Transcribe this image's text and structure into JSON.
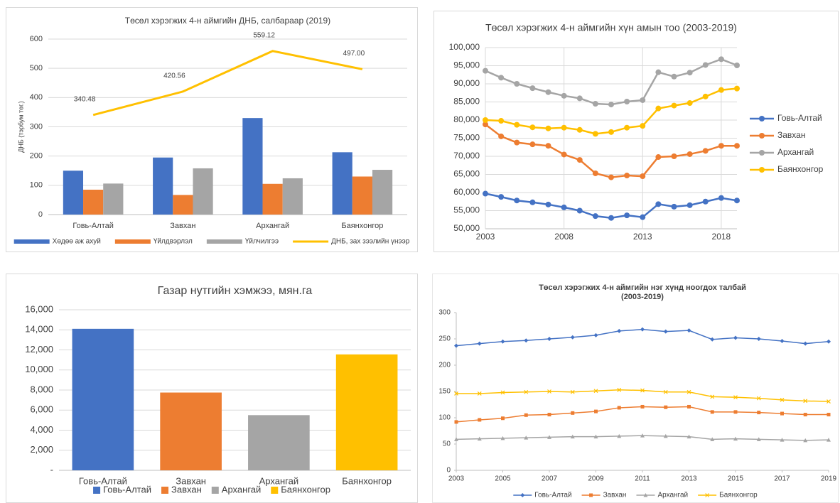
{
  "chart_data": [
    {
      "type": "bar",
      "title": "Төсөл хэрэгжих 4-н аймгийн ДНБ, салбараар (2019)",
      "ylabel": "ДНБ (тэрбум төг.)",
      "categories": [
        "Говь-Алтай",
        "Завхан",
        "Архангай",
        "Баянхонгор"
      ],
      "series": [
        {
          "name": "Хөдөө аж ахуй",
          "color": "#4472c4",
          "values": [
            150,
            195,
            330,
            213
          ]
        },
        {
          "name": "Үйлдвэрлэл",
          "color": "#ed7d31",
          "values": [
            85,
            67,
            105,
            130
          ]
        },
        {
          "name": "Үйлчилгээ",
          "color": "#a5a5a5",
          "values": [
            106,
            158,
            124,
            153
          ]
        },
        {
          "name": "ДНБ, зах зээлийн үнээр",
          "color": "#ffc000",
          "type": "line",
          "values": [
            340.48,
            420.56,
            559.12,
            497
          ],
          "value_labels": [
            "340.48",
            "420.56",
            "559.12",
            "497.00"
          ]
        }
      ],
      "ylim": [
        0,
        600
      ],
      "yticks": [
        0,
        100,
        200,
        300,
        400,
        500,
        600
      ],
      "grid": true,
      "legend": "bottom"
    },
    {
      "type": "line",
      "title": "Төсөл хэрэгжих 4-н аймгийн хүн амын тоо (2003-2019)",
      "x": [
        2003,
        2004,
        2005,
        2006,
        2007,
        2008,
        2009,
        2010,
        2011,
        2012,
        2013,
        2014,
        2015,
        2016,
        2017,
        2018,
        2019
      ],
      "series": [
        {
          "name": "Говь-Алтай",
          "color": "#4472c4",
          "marker": "circle",
          "values": [
            59700,
            58800,
            57800,
            57300,
            56700,
            55900,
            55000,
            53500,
            53000,
            53700,
            53200,
            56800,
            56100,
            56500,
            57500,
            58500,
            57800
          ]
        },
        {
          "name": "Завхан",
          "color": "#ed7d31",
          "marker": "circle",
          "values": [
            78800,
            75500,
            73800,
            73300,
            72900,
            70500,
            69000,
            65300,
            64200,
            64700,
            64500,
            69800,
            70000,
            70600,
            71500,
            72900,
            72900
          ]
        },
        {
          "name": "Архангай",
          "color": "#a5a5a5",
          "marker": "circle",
          "values": [
            93600,
            91700,
            90000,
            88800,
            87700,
            86700,
            86000,
            84500,
            84300,
            85100,
            85500,
            93200,
            92000,
            93100,
            95200,
            96800,
            95100
          ]
        },
        {
          "name": "Баянхонгор",
          "color": "#ffc000",
          "marker": "circle",
          "values": [
            80000,
            79800,
            78700,
            78000,
            77700,
            77900,
            77300,
            76200,
            76700,
            77900,
            78400,
            83200,
            84000,
            84700,
            86500,
            88300,
            88700
          ]
        }
      ],
      "xlim": [
        2003,
        2019
      ],
      "xticks": [
        2003,
        2008,
        2013,
        2018
      ],
      "ylim": [
        50000,
        100000
      ],
      "yticks": [
        {
          "value": 50000,
          "label": "50,000"
        },
        {
          "value": 55000,
          "label": "55,000"
        },
        {
          "value": 60000,
          "label": "60,000"
        },
        {
          "value": 65000,
          "label": "65,000"
        },
        {
          "value": 70000,
          "label": "70,000"
        },
        {
          "value": 75000,
          "label": "75,000"
        },
        {
          "value": 80000,
          "label": "80,000"
        },
        {
          "value": 85000,
          "label": "85,000"
        },
        {
          "value": 90000,
          "label": "90,000"
        },
        {
          "value": 95000,
          "label": "95,000"
        },
        {
          "value": 100000,
          "label": "100,000"
        }
      ],
      "grid": true,
      "xgrid": true,
      "legend": "right"
    },
    {
      "type": "bar",
      "title": "Газар нутгийн хэмжээ, мян.га",
      "categories": [
        "Говь-Алтай",
        "Завхан",
        "Архангай",
        "Баянхонгор"
      ],
      "values": [
        14100,
        7750,
        5500,
        11550
      ],
      "colors": [
        "#4472c4",
        "#ed7d31",
        "#a5a5a5",
        "#ffc000"
      ],
      "ylim": [
        0,
        16000
      ],
      "yticks": [
        {
          "value": 0,
          "label": "-"
        },
        {
          "value": 2000,
          "label": "2,000"
        },
        {
          "value": 4000,
          "label": "4,000"
        },
        {
          "value": 6000,
          "label": "6,000"
        },
        {
          "value": 8000,
          "label": "8,000"
        },
        {
          "value": 10000,
          "label": "10,000"
        },
        {
          "value": 12000,
          "label": "12,000"
        },
        {
          "value": 14000,
          "label": "14,000"
        },
        {
          "value": 16000,
          "label": "16,000"
        }
      ],
      "grid": true,
      "legend": "bottom"
    },
    {
      "type": "line",
      "title": [
        "Төсөл хэрэгжих 4-н аймгийн нэг хүнд ноогдох талбай",
        "(2003-2019)"
      ],
      "x": [
        2003,
        2004,
        2005,
        2006,
        2007,
        2008,
        2009,
        2010,
        2011,
        2012,
        2013,
        2014,
        2015,
        2016,
        2017,
        2018,
        2019
      ],
      "series": [
        {
          "name": "Говь-Алтай",
          "color": "#4472c4",
          "marker": "diamond",
          "values": [
            237,
            241,
            245,
            247,
            250,
            253,
            257,
            265,
            268,
            264,
            266,
            249,
            252,
            250,
            246,
            241,
            245
          ]
        },
        {
          "name": "Завхан",
          "color": "#ed7d31",
          "marker": "square",
          "values": [
            92,
            96,
            99,
            105,
            106,
            109,
            112,
            119,
            121,
            120,
            121,
            111,
            111,
            110,
            108,
            106,
            106
          ]
        },
        {
          "name": "Архангай",
          "color": "#a5a5a5",
          "marker": "triangle",
          "values": [
            59,
            60,
            61,
            62,
            63,
            64,
            64,
            65,
            66,
            65,
            64,
            59,
            60,
            59,
            58,
            57,
            58
          ]
        },
        {
          "name": "Баянхонгор",
          "color": "#ffc000",
          "marker": "x",
          "values": [
            146,
            146,
            148,
            149,
            150,
            149,
            151,
            153,
            152,
            149,
            149,
            140,
            139,
            137,
            134,
            132,
            131
          ]
        }
      ],
      "xlim": [
        2003,
        2019
      ],
      "xticks": [
        2003,
        2005,
        2007,
        2009,
        2011,
        2013,
        2015,
        2017,
        2019
      ],
      "ylim": [
        0,
        300
      ],
      "yticks": [
        0,
        50,
        100,
        150,
        200,
        250,
        300
      ],
      "grid": false,
      "legend": "bottom"
    }
  ]
}
